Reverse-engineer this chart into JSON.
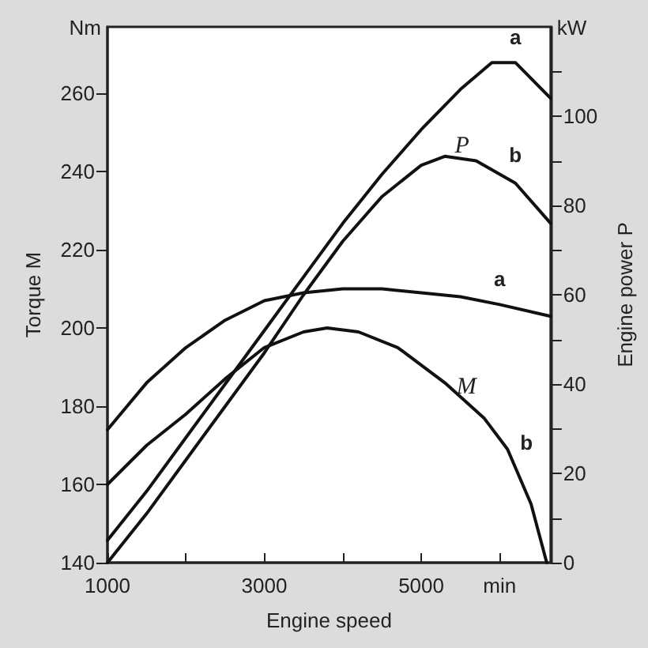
{
  "chart_data": {
    "type": "line",
    "xlabel": "Engine speed",
    "ylabel": "Torque M",
    "y2label": "Engine power P",
    "xlim": [
      1000,
      6650
    ],
    "xticks": [
      1000,
      {
        "value": 2000,
        "label": null
      },
      3000,
      {
        "value": 4000,
        "label": null
      },
      5000,
      {
        "value": 6000,
        "label": "min"
      }
    ],
    "ylim": [
      140,
      277
    ],
    "yticks": [
      140,
      160,
      180,
      200,
      220,
      240,
      260
    ],
    "y2lim": [
      0,
      120
    ],
    "y2ticks": [
      0,
      {
        "value": 10,
        "label": null
      },
      20,
      {
        "value": 30,
        "label": null
      },
      40,
      {
        "value": 50,
        "label": null
      },
      60,
      {
        "value": 70,
        "label": null
      },
      80,
      {
        "value": 90,
        "label": null
      },
      100,
      {
        "value": 110,
        "label": null
      }
    ],
    "grid": false,
    "legend": false,
    "marker": "none",
    "line_style": "solid",
    "series": [
      {
        "name": "a",
        "color": "#111111",
        "axis": "y2",
        "x": [
          1000,
          1500,
          2000,
          2500,
          3000,
          3500,
          4000,
          4500,
          5000,
          5500,
          5900,
          6200,
          6650
        ],
        "values": [
          5,
          16,
          28,
          40,
          52,
          64,
          76,
          87,
          97,
          106,
          112,
          112,
          104
        ]
      },
      {
        "name": "b",
        "color": "#111111",
        "axis": "y2",
        "x": [
          1000,
          1500,
          2000,
          2500,
          3000,
          3500,
          4000,
          4500,
          5000,
          5300,
          5700,
          6200,
          6650
        ],
        "values": [
          0,
          11,
          23,
          35,
          47,
          60,
          72,
          82,
          89,
          91,
          90,
          85,
          76
        ]
      },
      {
        "name": "a",
        "color": "#111111",
        "x": [
          1000,
          1500,
          2000,
          2500,
          3000,
          3500,
          4000,
          4500,
          5000,
          5500,
          6000,
          6650
        ],
        "values": [
          174,
          186,
          195,
          202,
          207,
          209,
          210,
          210,
          209,
          208,
          206,
          203
        ]
      },
      {
        "name": "b",
        "color": "#111111",
        "x": [
          1000,
          1500,
          2000,
          2500,
          3000,
          3500,
          3800,
          4200,
          4700,
          5300,
          5800,
          6100,
          6400,
          6600
        ],
        "values": [
          160,
          170,
          178,
          187,
          195,
          199,
          200,
          199,
          195,
          186,
          177,
          169,
          155,
          140
        ]
      }
    ],
    "annotations": [
      "Nm",
      "kW",
      "P",
      "M"
    ]
  }
}
